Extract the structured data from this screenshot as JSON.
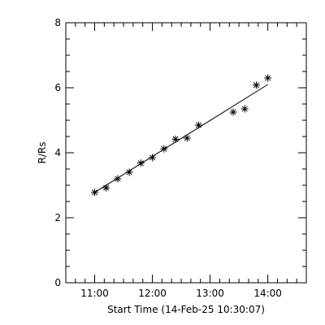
{
  "chart_data": {
    "type": "scatter",
    "title": "",
    "xlabel": "Start Time (14-Feb-25 10:30:07)",
    "ylabel": "R/Rs",
    "xlim": [
      "10:30",
      "14:40"
    ],
    "ylim": [
      0,
      8
    ],
    "x_ticks": [
      "11:00",
      "12:00",
      "13:00",
      "14:00"
    ],
    "y_ticks": [
      0,
      2,
      4,
      6,
      8
    ],
    "grid": false,
    "series": [
      {
        "marker": "asterisk",
        "points": [
          {
            "x": "11:00",
            "y": 2.78
          },
          {
            "x": "11:12",
            "y": 2.92
          },
          {
            "x": "11:24",
            "y": 3.2
          },
          {
            "x": "11:36",
            "y": 3.4
          },
          {
            "x": "11:48",
            "y": 3.68
          },
          {
            "x": "12:00",
            "y": 3.85
          },
          {
            "x": "12:12",
            "y": 4.12
          },
          {
            "x": "12:24",
            "y": 4.42
          },
          {
            "x": "12:36",
            "y": 4.45
          },
          {
            "x": "12:48",
            "y": 4.85
          },
          {
            "x": "13:24",
            "y": 5.25
          },
          {
            "x": "13:36",
            "y": 5.35
          },
          {
            "x": "13:48",
            "y": 6.08
          },
          {
            "x": "14:00",
            "y": 6.3
          }
        ]
      }
    ],
    "fit_line": {
      "x": [
        "11:00",
        "14:00"
      ],
      "y": [
        2.78,
        6.1
      ]
    }
  }
}
